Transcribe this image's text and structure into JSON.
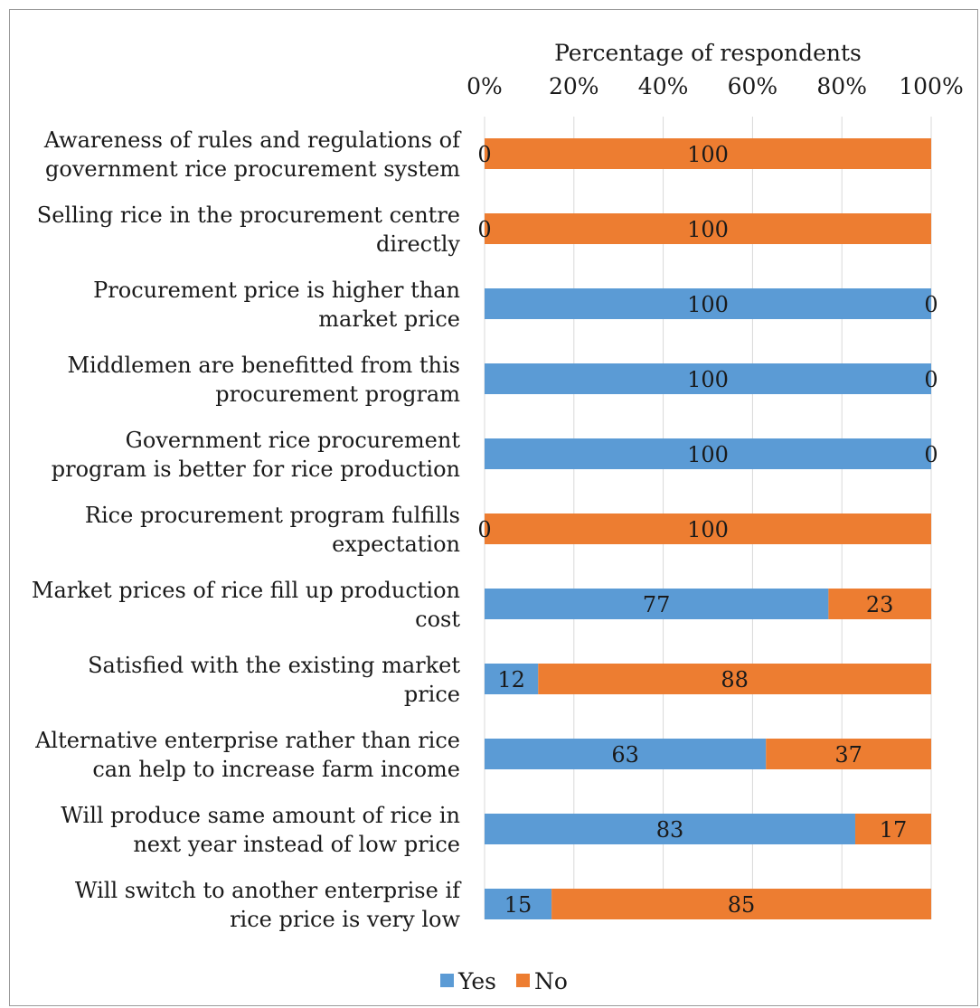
{
  "chart_data": {
    "type": "bar",
    "orientation": "horizontal",
    "stacked": true,
    "percent_stacked": true,
    "xlabel": "Percentage of respondents",
    "xaxis_position": "top",
    "xlim": [
      0,
      100
    ],
    "xticks": [
      "0%",
      "20%",
      "40%",
      "60%",
      "80%",
      "100%"
    ],
    "grid": true,
    "legend_position": "bottom",
    "categories": [
      [
        "Awareness of rules and regulations of",
        "government rice procurement system"
      ],
      [
        "Selling rice in the procurement centre",
        "directly"
      ],
      [
        "Procurement price is higher than",
        "market price"
      ],
      [
        "Middlemen are benefitted from this",
        "procurement program"
      ],
      [
        "Government rice procurement",
        "program is better for rice production"
      ],
      [
        "Rice procurement program fulfills",
        "expectation"
      ],
      [
        "Market prices of rice fill up production",
        "cost"
      ],
      [
        "Satisfied with the existing market",
        "price"
      ],
      [
        "Alternative enterprise rather than rice",
        "can help to increase farm income"
      ],
      [
        "Will produce same amount of rice in",
        "next year instead of low price"
      ],
      [
        "Will switch to another enterprise if",
        "rice price is very low"
      ]
    ],
    "series": [
      {
        "name": "Yes",
        "color": "#5b9bd5",
        "values": [
          0,
          0,
          100,
          100,
          100,
          0,
          77,
          12,
          63,
          83,
          15
        ]
      },
      {
        "name": "No",
        "color": "#ed7d31",
        "values": [
          100,
          100,
          0,
          0,
          0,
          100,
          23,
          88,
          37,
          17,
          85
        ]
      }
    ]
  }
}
